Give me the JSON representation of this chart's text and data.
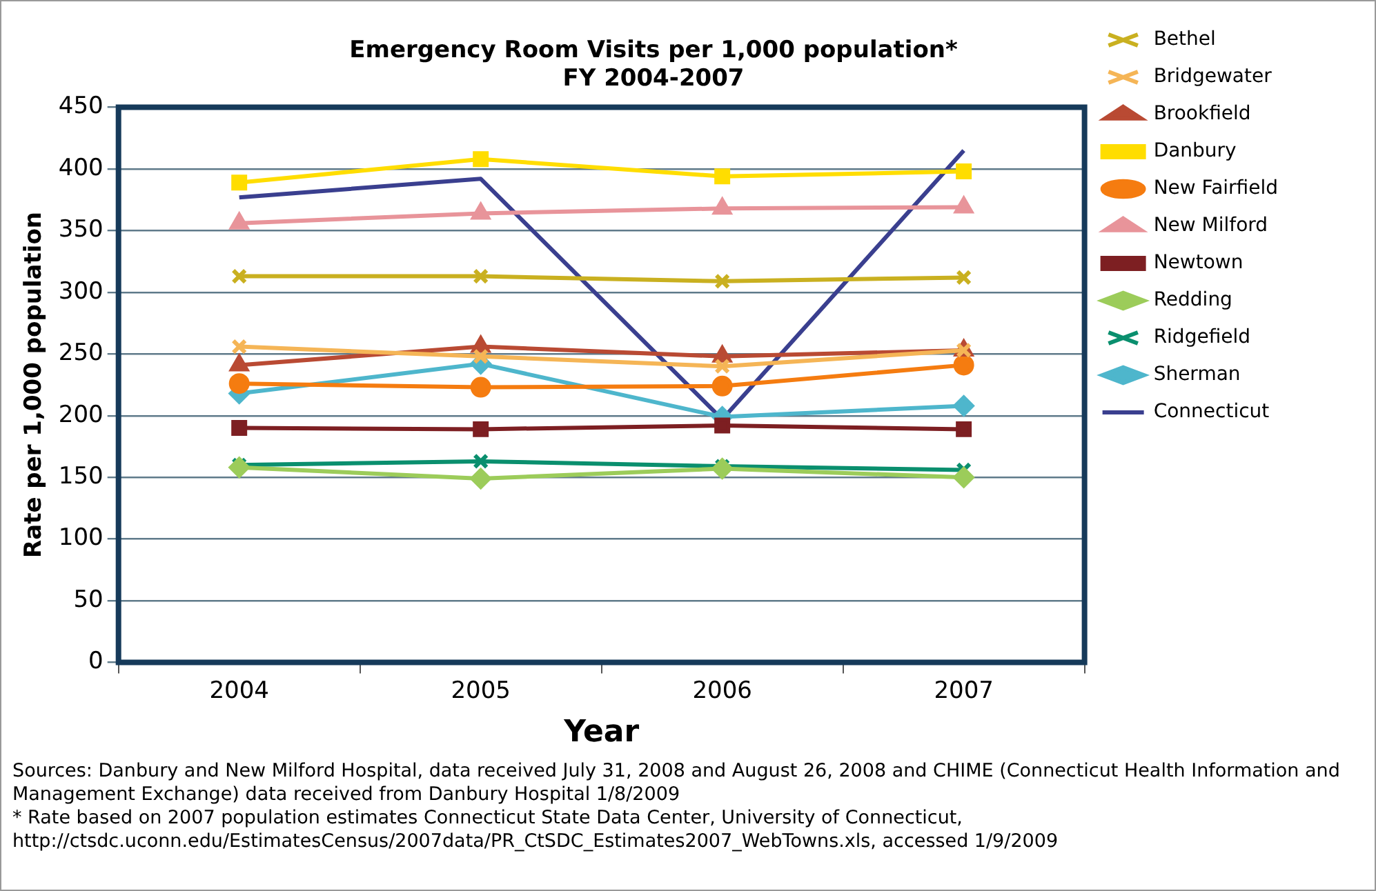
{
  "chart_data": {
    "type": "line",
    "title": "Emergency Room Visits per 1,000 population*",
    "subtitle": "FY 2004-2007",
    "xlabel": "Year",
    "ylabel": "Rate per 1,000 population",
    "categories": [
      "2004",
      "2005",
      "2006",
      "2007"
    ],
    "ylim": [
      0,
      450
    ],
    "yticks": [
      0,
      50,
      100,
      150,
      200,
      250,
      300,
      350,
      400,
      450
    ],
    "grid": "y",
    "legend": "right",
    "series": [
      {
        "name": "Bethel",
        "color": "#c9b020",
        "marker": "cross",
        "values": [
          313,
          313,
          309,
          312
        ]
      },
      {
        "name": "Bridgewater",
        "color": "#f5b556",
        "marker": "cross",
        "values": [
          256,
          248,
          240,
          253
        ]
      },
      {
        "name": "Brookfield",
        "color": "#b94a33",
        "marker": "triangle",
        "values": [
          241,
          256,
          248,
          253
        ]
      },
      {
        "name": "Danbury",
        "color": "#ffdd00",
        "marker": "square",
        "values": [
          389,
          408,
          394,
          398
        ]
      },
      {
        "name": "New Fairfield",
        "color": "#f57c10",
        "marker": "circle",
        "values": [
          226,
          223,
          224,
          241
        ]
      },
      {
        "name": "New Milford",
        "color": "#e8949a",
        "marker": "triangle",
        "values": [
          356,
          364,
          368,
          369
        ]
      },
      {
        "name": "Newtown",
        "color": "#7d1f22",
        "marker": "square",
        "values": [
          190,
          189,
          192,
          189
        ]
      },
      {
        "name": "Redding",
        "color": "#9ccc5a",
        "marker": "diamond",
        "values": [
          158,
          149,
          157,
          150
        ]
      },
      {
        "name": "Ridgefield",
        "color": "#0a8f6e",
        "marker": "cross",
        "values": [
          160,
          163,
          159,
          156
        ]
      },
      {
        "name": "Sherman",
        "color": "#4eb6cc",
        "marker": "diamond",
        "values": [
          218,
          242,
          199,
          208
        ]
      },
      {
        "name": "Connecticut",
        "color": "#3a3f8f",
        "marker": "none",
        "values": [
          377,
          392,
          197,
          415
        ]
      }
    ],
    "annotations": [
      "Sources: Danbury and New Milford Hospital, data received July 31, 2008 and August 26, 2008 and CHIME (Connecticut Health Information and Management Exchange) data received from Danbury Hospital 1/8/2009",
      "* Rate based on 2007 population estimates Connecticut State Data Center, University of Connecticut, http://ctsdc.uconn.edu/EstimatesCensus/2007data/PR_CtSDC_Estimates2007_WebTowns.xls, accessed 1/9/2009"
    ]
  }
}
